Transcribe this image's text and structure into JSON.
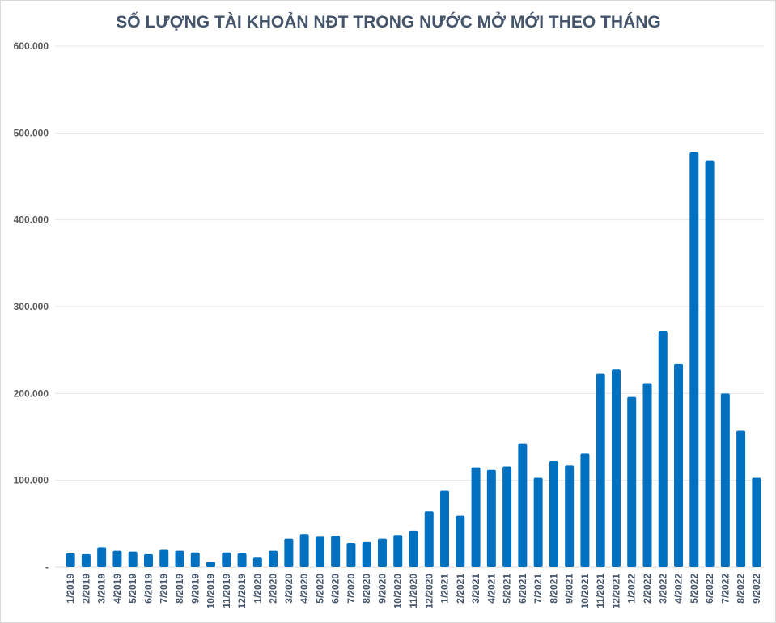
{
  "chart_data": {
    "type": "bar",
    "title": "SỐ LƯỢNG TÀI KHOẢN NĐT TRONG NƯỚC MỞ MỚI THEO THÁNG",
    "xlabel": "",
    "ylabel": "",
    "ylim": [
      0,
      600000
    ],
    "yticks": [
      0,
      100000,
      200000,
      300000,
      400000,
      500000,
      600000
    ],
    "ytick_labels": [
      "-",
      "100.000",
      "200.000",
      "300.000",
      "400.000",
      "500.000",
      "600.000"
    ],
    "grid": true,
    "bar_color": "#0070c0",
    "categories": [
      "1/2019",
      "2/2019",
      "3/2019",
      "4/2019",
      "5/2019",
      "6/2019",
      "7/2019",
      "8/2019",
      "9/2019",
      "10/2019",
      "11/2019",
      "12/2019",
      "1/2020",
      "2/2020",
      "3/2020",
      "4/2020",
      "5/2020",
      "6/2020",
      "7/2020",
      "8/2020",
      "9/2020",
      "10/2020",
      "11/2020",
      "12/2020",
      "1/2021",
      "2/2021",
      "3/2021",
      "4/2021",
      "5/2021",
      "6/2021",
      "7/2021",
      "8/2021",
      "9/2021",
      "10/2021",
      "11/2021",
      "12/2021",
      "1/2022",
      "2/2022",
      "3/2022",
      "4/2022",
      "5/2022",
      "6/2022",
      "7/2022",
      "8/2022",
      "9/2022"
    ],
    "values": [
      16000,
      15000,
      23000,
      19000,
      18000,
      15000,
      20000,
      19000,
      17000,
      6500,
      17000,
      16000,
      11000,
      19000,
      33000,
      38000,
      35000,
      36000,
      28000,
      29000,
      33000,
      37000,
      42000,
      64000,
      88000,
      59000,
      115000,
      112000,
      116000,
      142000,
      103000,
      122000,
      117000,
      131000,
      223000,
      228000,
      196000,
      212000,
      272000,
      234000,
      478000,
      468000,
      200000,
      157000,
      103000
    ]
  }
}
